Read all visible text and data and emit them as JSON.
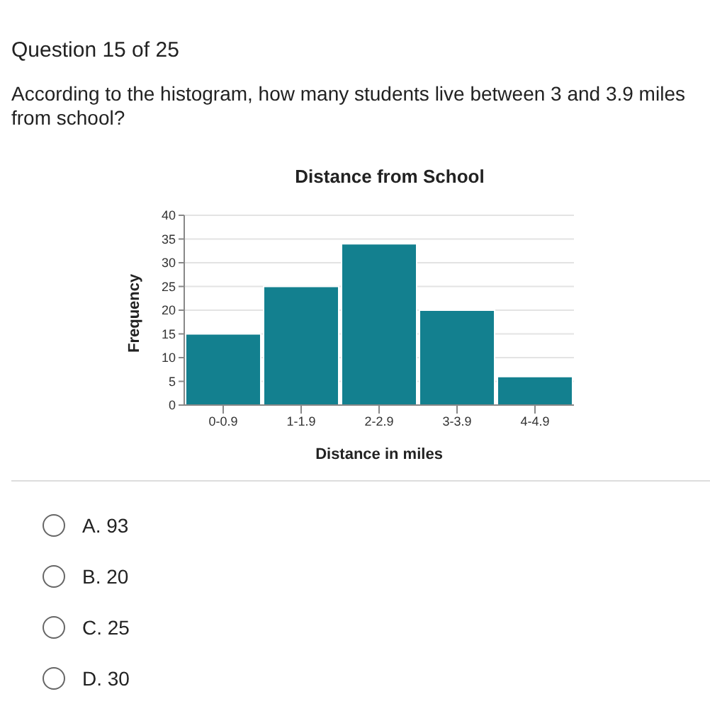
{
  "chart_data": {
    "type": "bar",
    "title": "Distance from School",
    "xlabel": "Distance in miles",
    "ylabel": "Frequency",
    "categories": [
      "0-0.9",
      "1-1.9",
      "2-2.9",
      "3-3.9",
      "4-4.9"
    ],
    "values": [
      15,
      25,
      34,
      20,
      6
    ],
    "color": "#13808f",
    "ylim": [
      0,
      40
    ],
    "yticks": [
      0,
      5,
      10,
      15,
      20,
      25,
      30,
      35,
      40
    ],
    "grid": "y",
    "annotations": [
      "Question 15 of 25",
      "According to the histogram, how many students live between 3 and 3.9 miles from school?",
      "A. 93",
      "B. 20",
      "C. 25",
      "D. 30"
    ]
  }
}
